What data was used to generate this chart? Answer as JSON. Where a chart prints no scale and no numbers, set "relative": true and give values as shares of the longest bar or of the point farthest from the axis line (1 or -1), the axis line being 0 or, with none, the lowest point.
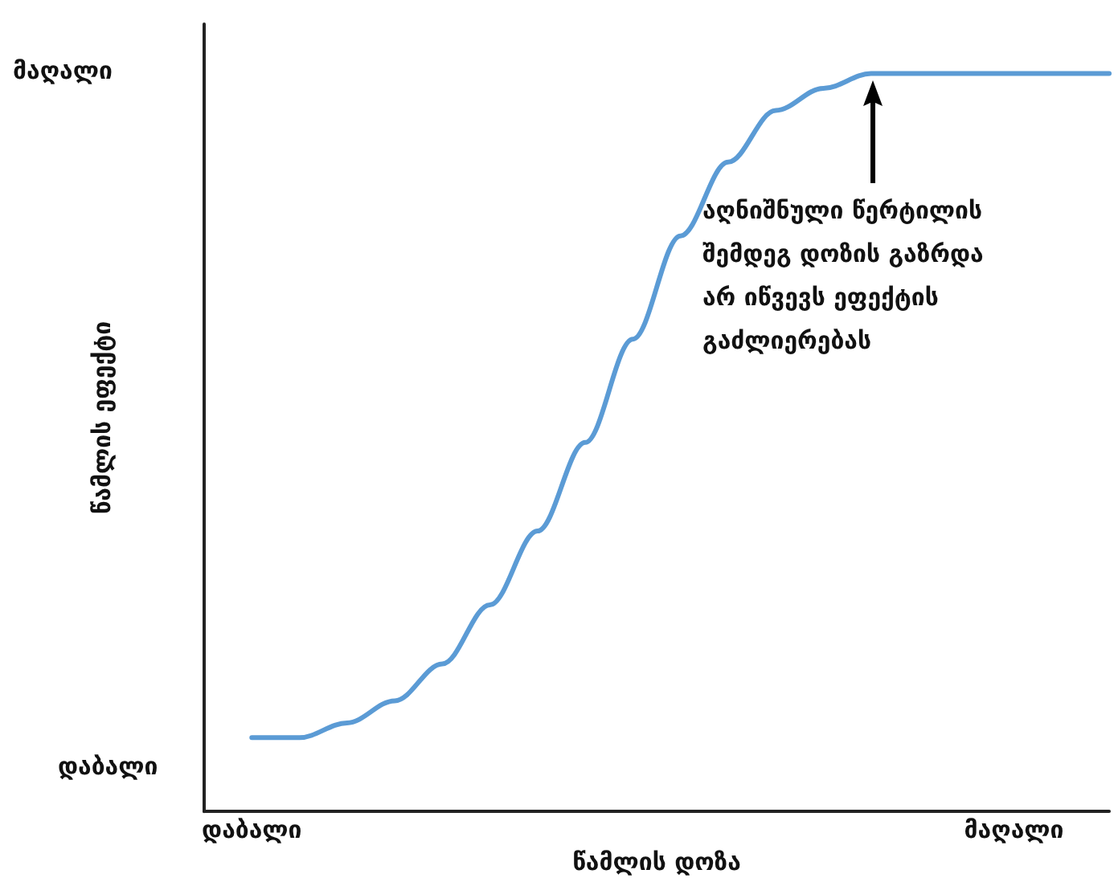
{
  "chart_data": {
    "type": "line",
    "relative": true,
    "xlabel": "წამლის დოზა",
    "ylabel": "წამლის ეფექტი",
    "categories": [
      null,
      "დაბალი",
      null,
      null,
      null,
      null,
      null,
      null,
      null,
      null,
      null,
      null,
      null,
      null,
      null,
      null,
      null,
      "მაღალი",
      null,
      null
    ],
    "series": [
      {
        "color": "#5b9bd5",
        "values": [
          null,
          0.1,
          0.1,
          0.12,
          0.15,
          0.2,
          0.28,
          0.38,
          0.5,
          0.64,
          0.78,
          0.88,
          0.95,
          0.98,
          1,
          1,
          1,
          1,
          1,
          1
        ]
      }
    ],
    "annotations": [
      "აღნიშნული წერტილის\nშემდეგ დოზის გაზრდა\nარ იწვევს ეფექტის\nგაძლიერებას",
      "მაღალი",
      "დაბალი"
    ],
    "grid": false,
    "marker": "none",
    "line_style": "solid"
  }
}
